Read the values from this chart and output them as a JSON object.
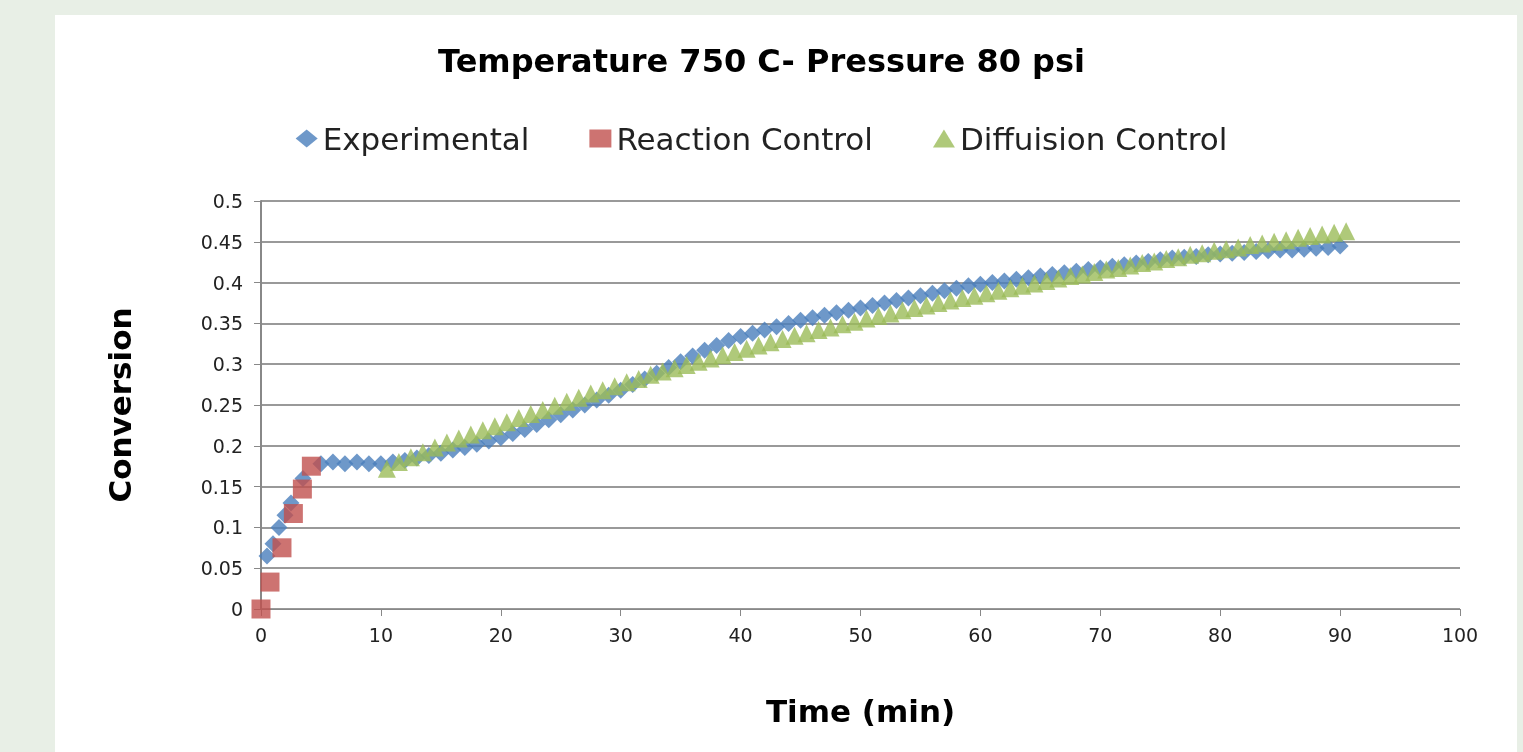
{
  "chart_data": {
    "type": "scatter",
    "title": "Temperature 750 C- Pressure 80 psi",
    "xlabel": "Time (min)",
    "ylabel": "Conversion",
    "xlim": [
      0,
      100
    ],
    "xticks": [
      0,
      10,
      20,
      30,
      40,
      50,
      60,
      70,
      80,
      90,
      100
    ],
    "ylim": [
      0,
      0.5
    ],
    "yticks": [
      0,
      0.05,
      0.1,
      0.15,
      0.2,
      0.25,
      0.3,
      0.35,
      0.4,
      0.45,
      0.5
    ],
    "grid": "y",
    "legend": "top",
    "series": [
      {
        "name": "Experimental",
        "color": "#4a7ebb",
        "marker": "diamond",
        "x": [
          0.5,
          1,
          1.5,
          2,
          2.5,
          3,
          3.5,
          4,
          5,
          6,
          7,
          8,
          9,
          10,
          11,
          12,
          13,
          14,
          15,
          16,
          17,
          18,
          19,
          20,
          21,
          22,
          23,
          24,
          25,
          26,
          27,
          28,
          29,
          30,
          31,
          32,
          33,
          34,
          35,
          36,
          37,
          38,
          39,
          40,
          41,
          42,
          43,
          44,
          45,
          46,
          47,
          48,
          49,
          50,
          51,
          52,
          53,
          54,
          55,
          56,
          57,
          58,
          59,
          60,
          61,
          62,
          63,
          64,
          65,
          66,
          67,
          68,
          69,
          70,
          71,
          72,
          73,
          74,
          75,
          76,
          77,
          78,
          79,
          80,
          81,
          82,
          83,
          84,
          85,
          86,
          87,
          88,
          89,
          90
        ],
        "values": [
          0.065,
          0.08,
          0.1,
          0.115,
          0.13,
          null,
          0.16,
          null,
          0.178,
          0.18,
          0.178,
          0.18,
          0.178,
          0.178,
          0.18,
          0.182,
          0.185,
          0.188,
          0.191,
          0.195,
          0.198,
          0.202,
          0.206,
          0.21,
          0.215,
          0.22,
          0.226,
          0.232,
          0.238,
          0.244,
          0.25,
          0.256,
          0.262,
          0.268,
          0.275,
          0.282,
          0.289,
          0.296,
          0.303,
          0.31,
          0.317,
          0.323,
          0.329,
          0.334,
          0.338,
          0.342,
          0.346,
          0.35,
          0.354,
          0.357,
          0.36,
          0.363,
          0.366,
          0.369,
          0.372,
          0.375,
          0.378,
          0.381,
          0.384,
          0.387,
          0.39,
          0.393,
          0.396,
          0.398,
          0.4,
          0.402,
          0.404,
          0.406,
          0.408,
          0.41,
          0.412,
          0.414,
          0.416,
          0.418,
          0.42,
          0.422,
          0.424,
          0.426,
          0.428,
          0.43,
          0.431,
          0.432,
          0.434,
          0.435,
          0.436,
          0.437,
          0.438,
          0.439,
          0.44,
          0.44,
          0.441,
          0.442,
          0.443,
          0.445
        ]
      },
      {
        "name": "Reaction Control",
        "color": "#c0504d",
        "marker": "square",
        "x": [
          0,
          0.75,
          1.75,
          2.7,
          3.45,
          4.2
        ],
        "values": [
          0,
          0.033,
          0.075,
          0.117,
          0.147,
          0.175
        ]
      },
      {
        "name": "Diffuision Control",
        "color": "#9bbb59",
        "marker": "triangle",
        "x": [
          10.5,
          11.5,
          12.5,
          13.5,
          14.5,
          15.5,
          16.5,
          17.5,
          18.5,
          19.5,
          20.5,
          21.5,
          22.5,
          23.5,
          24.5,
          25.5,
          26.5,
          27.5,
          28.5,
          29.5,
          30.5,
          31.5,
          32.5,
          33.5,
          34.5,
          35.5,
          36.5,
          37.5,
          38.5,
          39.5,
          40.5,
          41.5,
          42.5,
          43.5,
          44.5,
          45.5,
          46.5,
          47.5,
          48.5,
          49.5,
          50.5,
          51.5,
          52.5,
          53.5,
          54.5,
          55.5,
          56.5,
          57.5,
          58.5,
          59.5,
          60.5,
          61.5,
          62.5,
          63.5,
          64.5,
          65.5,
          66.5,
          67.5,
          68.5,
          69.5,
          70.5,
          71.5,
          72.5,
          73.5,
          74.5,
          75.5,
          76.5,
          77.5,
          78.5,
          79.5,
          80.5,
          81.5,
          82.5,
          83.5,
          84.5,
          85.5,
          86.5,
          87.5,
          88.5,
          89.5,
          90.5
        ],
        "values": [
          0.172,
          0.18,
          0.186,
          0.192,
          0.198,
          0.204,
          0.209,
          0.214,
          0.219,
          0.224,
          0.229,
          0.234,
          0.239,
          0.244,
          0.249,
          0.254,
          0.259,
          0.264,
          0.268,
          0.273,
          0.278,
          0.282,
          0.287,
          0.291,
          0.295,
          0.299,
          0.303,
          0.307,
          0.311,
          0.315,
          0.319,
          0.323,
          0.327,
          0.331,
          0.335,
          0.338,
          0.342,
          0.345,
          0.349,
          0.352,
          0.356,
          0.359,
          0.362,
          0.366,
          0.369,
          0.372,
          0.375,
          0.378,
          0.381,
          0.384,
          0.387,
          0.39,
          0.393,
          0.396,
          0.399,
          0.402,
          0.405,
          0.408,
          0.41,
          0.413,
          0.416,
          0.418,
          0.421,
          0.424,
          0.426,
          0.429,
          0.431,
          0.434,
          0.436,
          0.439,
          0.441,
          0.443,
          0.446,
          0.448,
          0.45,
          0.452,
          0.455,
          0.457,
          0.459,
          0.461,
          0.463
        ]
      }
    ]
  }
}
